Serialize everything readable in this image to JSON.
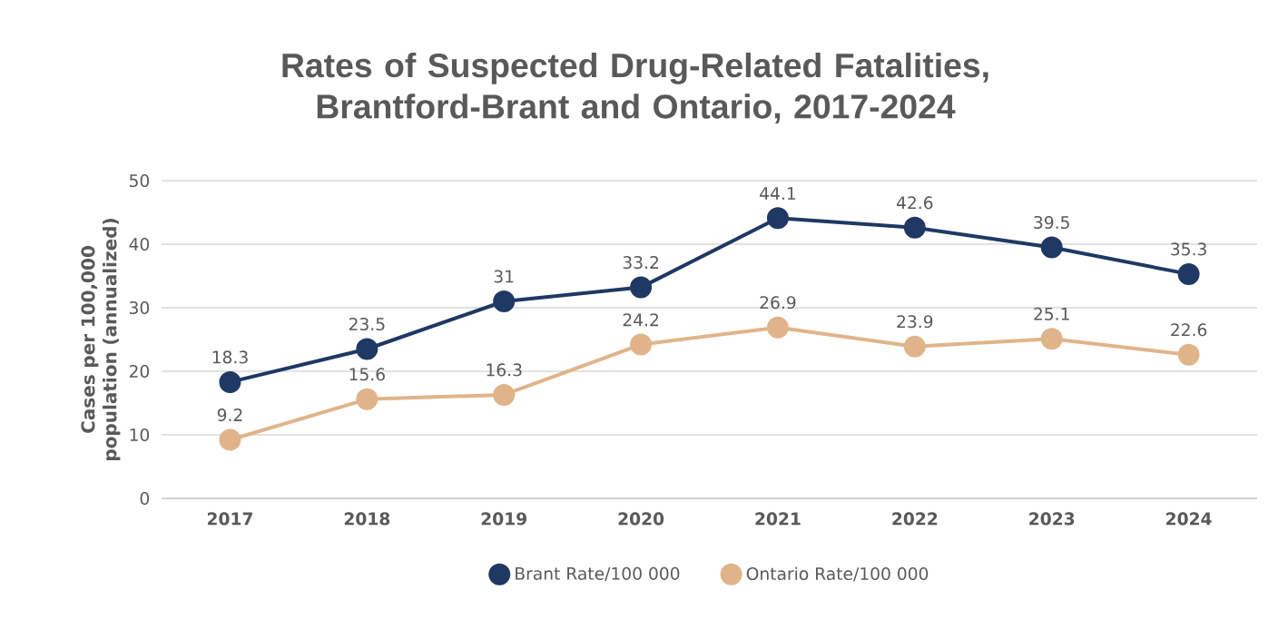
{
  "chart_data": {
    "type": "line",
    "title": "Rates of Suspected Drug-Related Fatalities, Brantford-Brant and Ontario, 2017-2024",
    "ylabel": "Cases per 100,000 population (annualized)",
    "categories": [
      "2017",
      "2018",
      "2019",
      "2020",
      "2021",
      "2022",
      "2023",
      "2024"
    ],
    "series": [
      {
        "name": "Brant Rate/100 000",
        "color": "#1f3864",
        "values": [
          18.3,
          23.5,
          31,
          33.2,
          44.1,
          42.6,
          39.5,
          35.3
        ]
      },
      {
        "name": "Ontario Rate/100 000",
        "color": "#e0b48a",
        "values": [
          9.2,
          15.6,
          16.3,
          24.2,
          26.9,
          23.9,
          25.1,
          22.6
        ]
      }
    ],
    "ylim": [
      0,
      50
    ],
    "yticks": [
      0,
      10,
      20,
      30,
      40,
      50
    ],
    "grid": "y",
    "legend": "bottom",
    "marker": "circle",
    "line_style": "solid",
    "data_labels": true
  }
}
